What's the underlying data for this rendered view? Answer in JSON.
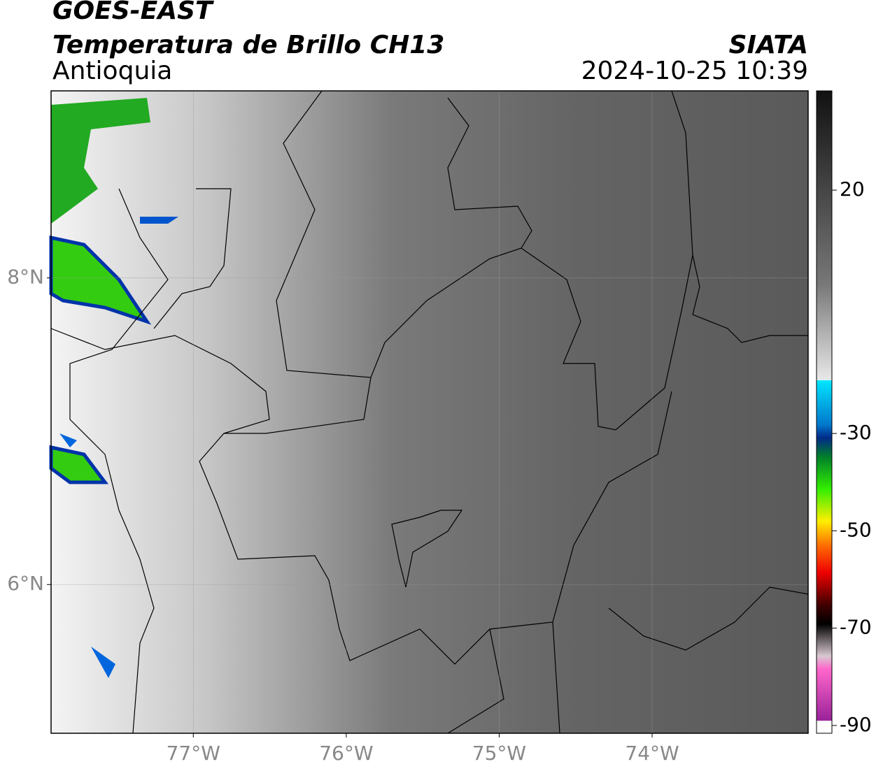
{
  "header": {
    "satellite": "GOES-EAST",
    "title": "Temperatura de Brillo CH13",
    "region": "Antioquia",
    "source": "SIATA",
    "datetime": "2024-10-25 10:39"
  },
  "map": {
    "xlim": [
      -77.93,
      -72.98
    ],
    "ylim": [
      5.03,
      9.22
    ],
    "xticks": [
      {
        "value": -77,
        "label": "77°W"
      },
      {
        "value": -76,
        "label": "76°W"
      },
      {
        "value": -75,
        "label": "75°W"
      },
      {
        "value": -74,
        "label": "74°W"
      }
    ],
    "yticks": [
      {
        "value": 8,
        "label": "8°N"
      },
      {
        "value": 6,
        "label": "6°N"
      }
    ],
    "grid": true
  },
  "colorbar": {
    "lim": [
      -91.6,
      40.4
    ],
    "ticks": [
      20,
      -30,
      -50,
      -70,
      -90
    ]
  }
}
